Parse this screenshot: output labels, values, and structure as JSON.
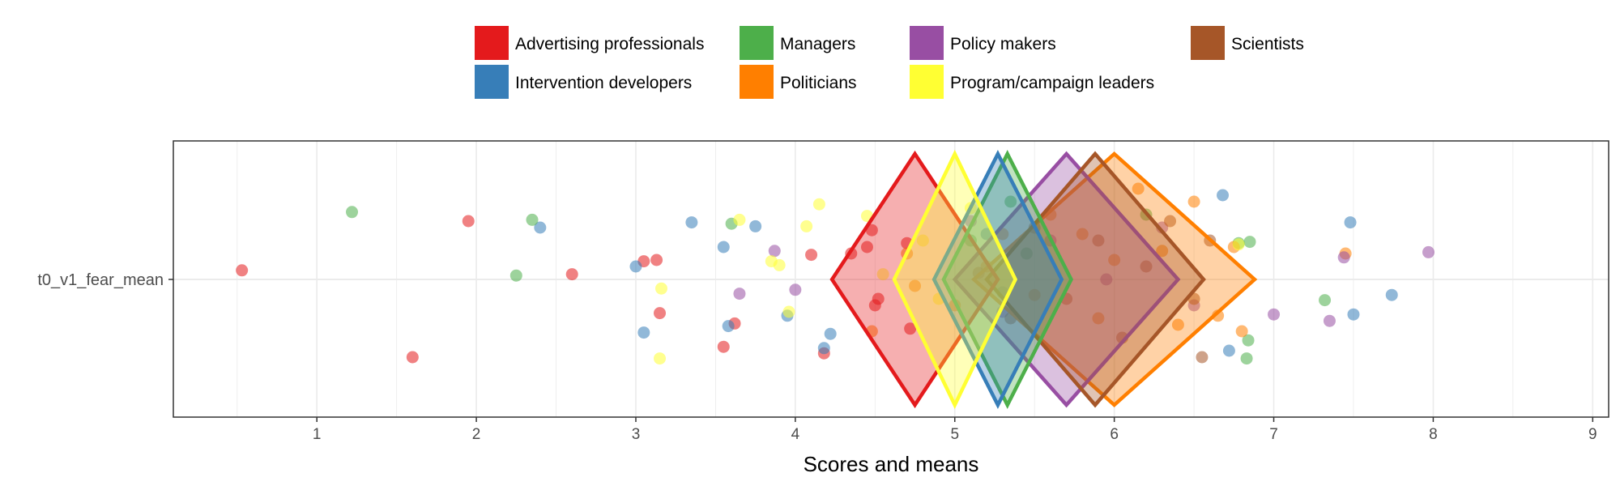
{
  "chart_data": {
    "type": "scatter",
    "xlabel": "Scores and means",
    "ylabel": "",
    "xlim": [
      0.1,
      9.1
    ],
    "xticks": [
      1,
      2,
      3,
      4,
      5,
      6,
      7,
      8,
      9
    ],
    "category": "t0_v1_fear_mean",
    "grid": true,
    "legend_position": "top",
    "series": [
      {
        "name": "Advertising professionals",
        "color": "#E41A1C",
        "mean": 4.75,
        "ci": [
          4.23,
          5.27
        ],
        "points": [
          [
            0.53,
            0.07
          ],
          [
            1.6,
            -0.6
          ],
          [
            1.95,
            0.45
          ],
          [
            2.6,
            0.04
          ],
          [
            3.05,
            0.14
          ],
          [
            3.13,
            0.15
          ],
          [
            3.15,
            -0.26
          ],
          [
            3.55,
            -0.52
          ],
          [
            3.62,
            -0.34
          ],
          [
            4.1,
            0.19
          ],
          [
            4.18,
            -0.57
          ],
          [
            4.35,
            0.2
          ],
          [
            4.45,
            0.25
          ],
          [
            4.48,
            0.38
          ],
          [
            4.5,
            -0.2
          ],
          [
            4.52,
            -0.15
          ],
          [
            4.7,
            0.28
          ],
          [
            4.72,
            -0.38
          ]
        ]
      },
      {
        "name": "Intervention developers",
        "color": "#377EB8",
        "mean": 5.27,
        "ci": [
          4.87,
          5.67
        ],
        "points": [
          [
            2.4,
            0.4
          ],
          [
            3.0,
            0.1
          ],
          [
            3.05,
            -0.41
          ],
          [
            3.35,
            0.44
          ],
          [
            3.55,
            0.25
          ],
          [
            3.58,
            -0.36
          ],
          [
            3.75,
            0.41
          ],
          [
            3.95,
            -0.28
          ],
          [
            4.18,
            -0.53
          ],
          [
            4.22,
            -0.42
          ],
          [
            5.2,
            0.35
          ],
          [
            5.3,
            -0.1
          ],
          [
            6.68,
            0.65
          ],
          [
            6.72,
            -0.55
          ],
          [
            7.48,
            0.44
          ],
          [
            7.5,
            -0.27
          ],
          [
            7.74,
            -0.12
          ]
        ]
      },
      {
        "name": "Managers",
        "color": "#4DAF4A",
        "mean": 5.33,
        "ci": [
          4.93,
          5.73
        ],
        "points": [
          [
            1.22,
            0.52
          ],
          [
            2.25,
            0.03
          ],
          [
            2.35,
            0.46
          ],
          [
            3.6,
            0.43
          ],
          [
            5.1,
            0.3
          ],
          [
            5.35,
            0.6
          ],
          [
            5.45,
            0.2
          ],
          [
            6.2,
            0.5
          ],
          [
            6.78,
            0.28
          ],
          [
            6.83,
            -0.61
          ],
          [
            6.84,
            -0.47
          ],
          [
            6.85,
            0.29
          ],
          [
            7.32,
            -0.16
          ]
        ]
      },
      {
        "name": "Politicians",
        "color": "#FF7F00",
        "mean": 6.0,
        "ci": [
          5.12,
          6.88
        ],
        "points": [
          [
            4.48,
            -0.4
          ],
          [
            4.7,
            0.2
          ],
          [
            4.75,
            -0.05
          ],
          [
            5.0,
            -0.2
          ],
          [
            5.2,
            0.1
          ],
          [
            5.3,
            0.35
          ],
          [
            5.5,
            -0.12
          ],
          [
            5.6,
            0.5
          ],
          [
            5.8,
            0.35
          ],
          [
            5.9,
            -0.3
          ],
          [
            6.0,
            0.15
          ],
          [
            6.15,
            0.7
          ],
          [
            6.3,
            0.22
          ],
          [
            6.4,
            -0.35
          ],
          [
            6.5,
            0.6
          ],
          [
            6.65,
            -0.28
          ],
          [
            6.75,
            0.25
          ],
          [
            6.8,
            -0.4
          ],
          [
            7.45,
            0.2
          ]
        ]
      },
      {
        "name": "Policy makers",
        "color": "#984EA3",
        "mean": 5.7,
        "ci": [
          5.0,
          6.4
        ],
        "points": [
          [
            3.65,
            -0.11
          ],
          [
            3.87,
            0.22
          ],
          [
            4.0,
            -0.08
          ],
          [
            5.1,
            0.45
          ],
          [
            5.3,
            -0.25
          ],
          [
            5.6,
            0.3
          ],
          [
            5.95,
            0.0
          ],
          [
            6.3,
            0.4
          ],
          [
            6.5,
            -0.2
          ],
          [
            7.0,
            -0.27
          ],
          [
            7.35,
            -0.32
          ],
          [
            7.44,
            0.17
          ],
          [
            7.97,
            0.21
          ]
        ]
      },
      {
        "name": "Program/campaign leaders",
        "color": "#FFFF33",
        "mean": 5.0,
        "ci": [
          4.62,
          5.38
        ],
        "points": [
          [
            3.15,
            -0.61
          ],
          [
            3.16,
            -0.07
          ],
          [
            3.65,
            0.46
          ],
          [
            3.85,
            0.14
          ],
          [
            3.9,
            0.11
          ],
          [
            3.96,
            -0.25
          ],
          [
            4.07,
            0.41
          ],
          [
            4.15,
            0.58
          ],
          [
            4.45,
            0.49
          ],
          [
            4.55,
            0.04
          ],
          [
            4.8,
            0.3
          ],
          [
            4.9,
            -0.15
          ],
          [
            5.1,
            0.55
          ],
          [
            6.78,
            0.27
          ]
        ]
      },
      {
        "name": "Scientists",
        "color": "#A65628",
        "mean": 5.88,
        "ci": [
          5.2,
          6.56
        ],
        "points": [
          [
            5.15,
            0.05
          ],
          [
            5.35,
            -0.3
          ],
          [
            5.5,
            0.4
          ],
          [
            5.7,
            -0.15
          ],
          [
            5.9,
            0.3
          ],
          [
            6.05,
            -0.45
          ],
          [
            6.2,
            0.1
          ],
          [
            6.35,
            0.45
          ],
          [
            6.5,
            -0.15
          ],
          [
            6.55,
            -0.6
          ],
          [
            6.6,
            0.3
          ]
        ]
      }
    ]
  }
}
